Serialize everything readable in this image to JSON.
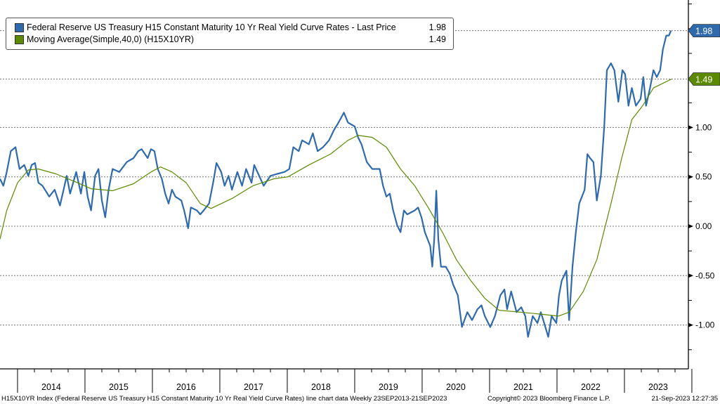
{
  "chart_data": {
    "type": "line",
    "title": "",
    "xlabel": "",
    "ylabel": "",
    "ylim": [
      -1.45,
      2.29
    ],
    "xlim": [
      2013.73,
      2023.96
    ],
    "y_ticks": [
      "1.00",
      "0.50",
      "0.00",
      "-0.50",
      "-1.00"
    ],
    "y_tick_values": [
      1.0,
      0.5,
      0.0,
      -0.5,
      -1.0
    ],
    "x_tick_labels": [
      "2014",
      "2015",
      "2016",
      "2017",
      "2018",
      "2019",
      "2020",
      "2021",
      "2022",
      "2023"
    ],
    "grid": true,
    "legend_placement": "top-left",
    "series": [
      {
        "name": "Federal Reserve US Treasury H15 Constant Maturity 10 Yr Real Yield Curve Rates - Last Price",
        "last": "1.98",
        "color": "#2f6aad",
        "x": [
          2013.74,
          2013.79,
          2013.84,
          2013.9,
          2013.97,
          2014.03,
          2014.1,
          2014.16,
          2014.21,
          2014.26,
          2014.31,
          2014.37,
          2014.47,
          2014.55,
          2014.63,
          2014.73,
          2014.78,
          2014.87,
          2014.94,
          2014.99,
          2015.04,
          2015.09,
          2015.15,
          2015.2,
          2015.25,
          2015.3,
          2015.35,
          2015.41,
          2015.51,
          2015.62,
          2015.72,
          2015.79,
          2015.84,
          2015.93,
          2015.98,
          2016.03,
          2016.08,
          2016.14,
          2016.19,
          2016.24,
          2016.29,
          2016.34,
          2016.43,
          2016.47,
          2016.53,
          2016.57,
          2016.66,
          2016.71,
          2016.76,
          2016.84,
          2016.9,
          2016.95,
          2017.02,
          2017.07,
          2017.13,
          2017.18,
          2017.26,
          2017.33,
          2017.39,
          2017.47,
          2017.51,
          2017.57,
          2017.65,
          2017.75,
          2017.85,
          2017.96,
          2018.03,
          2018.09,
          2018.17,
          2018.22,
          2018.32,
          2018.38,
          2018.45,
          2018.53,
          2018.62,
          2018.69,
          2018.76,
          2018.84,
          2018.9,
          2019.0,
          2019.05,
          2019.1,
          2019.18,
          2019.26,
          2019.37,
          2019.42,
          2019.47,
          2019.52,
          2019.57,
          2019.63,
          2019.68,
          2019.73,
          2019.78,
          2019.89,
          2019.94,
          2019.99,
          2020.04,
          2020.12,
          2020.15,
          2020.18,
          2020.21,
          2020.24,
          2020.28,
          2020.35,
          2020.41,
          2020.46,
          2020.53,
          2020.59,
          2020.67,
          2020.74,
          2020.82,
          2020.88,
          2020.93,
          2021.01,
          2021.08,
          2021.16,
          2021.22,
          2021.26,
          2021.32,
          2021.4,
          2021.47,
          2021.53,
          2021.57,
          2021.64,
          2021.71,
          2021.76,
          2021.81,
          2021.87,
          2021.92,
          2021.99,
          2022.03,
          2022.07,
          2022.14,
          2022.18,
          2022.23,
          2022.28,
          2022.33,
          2022.41,
          2022.45,
          2022.49,
          2022.54,
          2022.59,
          2022.65,
          2022.7,
          2022.74,
          2022.8,
          2022.85,
          2022.91,
          2022.97,
          2023.01,
          2023.06,
          2023.11,
          2023.17,
          2023.24,
          2023.28,
          2023.32,
          2023.38,
          2023.43,
          2023.48,
          2023.53,
          2023.57,
          2023.62,
          2023.66,
          2023.69
        ],
        "values": [
          0.48,
          0.41,
          0.55,
          0.76,
          0.8,
          0.58,
          0.62,
          0.51,
          0.62,
          0.64,
          0.44,
          0.41,
          0.3,
          0.37,
          0.21,
          0.51,
          0.33,
          0.55,
          0.33,
          0.55,
          0.3,
          0.16,
          0.51,
          0.58,
          0.26,
          0.09,
          0.37,
          0.58,
          0.55,
          0.65,
          0.69,
          0.76,
          0.78,
          0.69,
          0.78,
          0.76,
          0.58,
          0.48,
          0.33,
          0.23,
          0.37,
          0.3,
          0.26,
          0.16,
          -0.02,
          0.19,
          0.16,
          0.12,
          0.16,
          0.23,
          0.44,
          0.64,
          0.55,
          0.41,
          0.51,
          0.37,
          0.55,
          0.41,
          0.58,
          0.44,
          0.62,
          0.53,
          0.41,
          0.51,
          0.53,
          0.55,
          0.58,
          0.8,
          0.76,
          0.87,
          0.83,
          0.94,
          0.76,
          0.8,
          0.87,
          0.97,
          1.05,
          1.15,
          1.05,
          1.01,
          0.9,
          0.83,
          0.65,
          0.58,
          0.58,
          0.41,
          0.3,
          0.33,
          0.16,
          0.01,
          -0.06,
          0.16,
          0.12,
          0.16,
          0.19,
          0.09,
          -0.06,
          -0.2,
          -0.41,
          -0.13,
          0.36,
          -0.13,
          -0.41,
          -0.41,
          -0.48,
          -0.59,
          -0.7,
          -1.02,
          -0.87,
          -0.95,
          -0.84,
          -0.8,
          -0.91,
          -1.02,
          -0.91,
          -0.7,
          -0.64,
          -0.84,
          -0.66,
          -0.87,
          -0.82,
          -0.91,
          -1.12,
          -0.91,
          -0.98,
          -0.87,
          -0.98,
          -1.12,
          -0.91,
          -0.98,
          -0.7,
          -0.55,
          -0.45,
          -0.95,
          -0.41,
          -0.06,
          0.23,
          0.37,
          0.73,
          0.69,
          0.65,
          0.26,
          0.51,
          1.01,
          1.58,
          1.65,
          1.58,
          1.26,
          1.58,
          1.54,
          1.22,
          1.4,
          1.22,
          1.29,
          1.51,
          1.22,
          1.4,
          1.58,
          1.51,
          1.58,
          1.79,
          1.93,
          1.93,
          1.98
        ]
      },
      {
        "name": "Moving Average(Simple,40,0) (H15X10YR)",
        "last": "1.49",
        "color": "#5b8a00",
        "x": [
          2013.74,
          2013.84,
          2014.0,
          2014.16,
          2014.31,
          2014.57,
          2014.89,
          2015.09,
          2015.41,
          2015.72,
          2015.98,
          2016.12,
          2016.29,
          2016.5,
          2016.71,
          2016.87,
          2017.18,
          2017.49,
          2017.8,
          2018.01,
          2018.32,
          2018.64,
          2018.9,
          2019.05,
          2019.26,
          2019.47,
          2019.68,
          2019.89,
          2020.09,
          2020.3,
          2020.51,
          2020.72,
          2020.93,
          2021.14,
          2021.45,
          2021.76,
          2022.02,
          2022.18,
          2022.39,
          2022.59,
          2022.8,
          2022.96,
          2023.11,
          2023.27,
          2023.43,
          2023.58,
          2023.7
        ],
        "values": [
          -0.13,
          0.16,
          0.44,
          0.57,
          0.58,
          0.53,
          0.44,
          0.38,
          0.36,
          0.43,
          0.55,
          0.6,
          0.55,
          0.44,
          0.23,
          0.18,
          0.28,
          0.41,
          0.48,
          0.5,
          0.62,
          0.73,
          0.87,
          0.92,
          0.9,
          0.8,
          0.58,
          0.41,
          0.19,
          -0.06,
          -0.34,
          -0.55,
          -0.73,
          -0.85,
          -0.87,
          -0.89,
          -0.91,
          -0.87,
          -0.66,
          -0.34,
          0.23,
          0.69,
          1.08,
          1.22,
          1.4,
          1.45,
          1.49
        ]
      }
    ]
  },
  "footer": {
    "description": "H15X10YR Index (Federal Reserve US Treasury H15 Constant Maturity 10 Yr Real Yield Curve Rates) line chart data  Weekly 23SEP2013-21SEP2023",
    "copyright": "Copyright© 2023 Bloomberg Finance L.P.",
    "timestamp": "21-Sep-2023 12:27:35"
  }
}
